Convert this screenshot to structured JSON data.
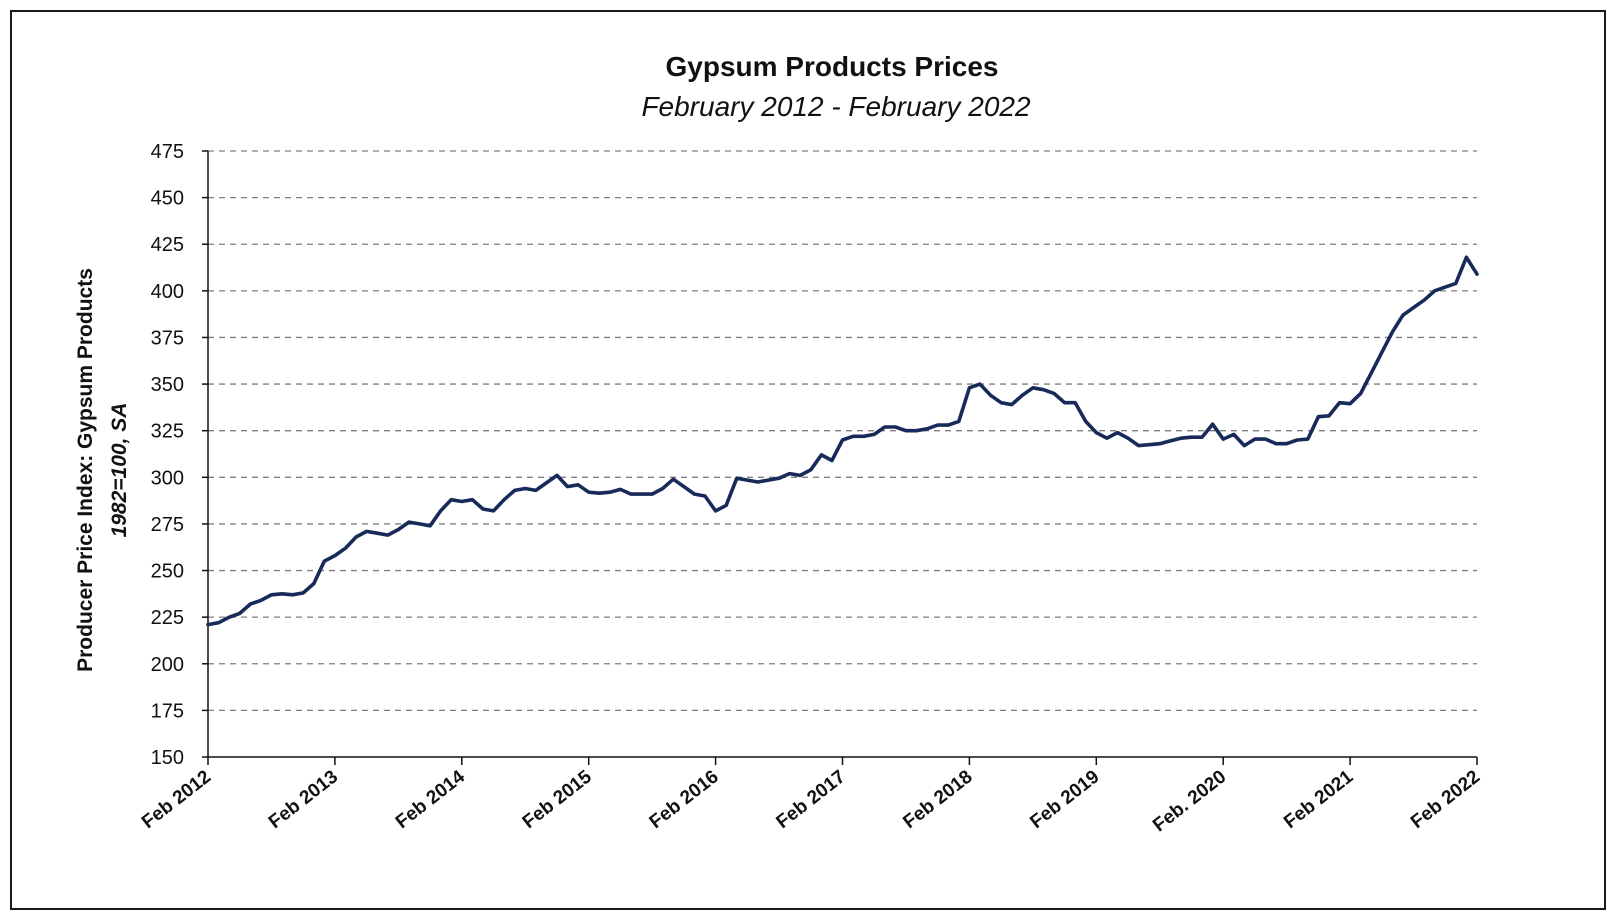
{
  "chart_data": {
    "type": "line",
    "title": "Gypsum Products Prices",
    "subtitle": "February 2012 - February 2022",
    "ylabel": "Producer Price Index: Gypsum Products",
    "ylabel_note": "1982=100, SA",
    "xlabel": "",
    "ylim": [
      150,
      475
    ],
    "yticks": [
      150,
      175,
      200,
      225,
      250,
      275,
      300,
      325,
      350,
      375,
      400,
      425,
      450,
      475
    ],
    "xlim": [
      "2012-02",
      "2022-02"
    ],
    "xticks": [
      {
        "x": "2012-02",
        "label": "Feb 2012"
      },
      {
        "x": "2013-02",
        "label": "Feb 2013"
      },
      {
        "x": "2014-02",
        "label": "Feb 2014"
      },
      {
        "x": "2015-02",
        "label": "Feb 2015"
      },
      {
        "x": "2016-02",
        "label": "Feb 2016"
      },
      {
        "x": "2017-02",
        "label": "Feb 2017"
      },
      {
        "x": "2018-02",
        "label": "Feb 2018"
      },
      {
        "x": "2019-02",
        "label": "Feb 2019"
      },
      {
        "x": "2020-02",
        "label": "Feb. 2020"
      },
      {
        "x": "2021-02",
        "label": "Feb 2021"
      },
      {
        "x": "2022-02",
        "label": "Feb 2022"
      }
    ],
    "grid": "horizontal-dashed",
    "legend": "none",
    "line_color": "#172a5a",
    "grid_color": "#7f7f7f",
    "series": [
      {
        "x": [
          "2012-02",
          "2012-03",
          "2012-04",
          "2012-05",
          "2012-06",
          "2012-07",
          "2012-08",
          "2012-09",
          "2012-10",
          "2012-11",
          "2012-12",
          "2013-01",
          "2013-02",
          "2013-03",
          "2013-04",
          "2013-05",
          "2013-06",
          "2013-07",
          "2013-08",
          "2013-09",
          "2013-10",
          "2013-11",
          "2013-12",
          "2014-01",
          "2014-02",
          "2014-03",
          "2014-04",
          "2014-05",
          "2014-06",
          "2014-07",
          "2014-08",
          "2014-09",
          "2014-10",
          "2014-11",
          "2014-12",
          "2015-01",
          "2015-02",
          "2015-03",
          "2015-04",
          "2015-05",
          "2015-06",
          "2015-07",
          "2015-08",
          "2015-09",
          "2015-10",
          "2015-11",
          "2015-12",
          "2016-01",
          "2016-02",
          "2016-03",
          "2016-04",
          "2016-05",
          "2016-06",
          "2016-07",
          "2016-08",
          "2016-09",
          "2016-10",
          "2016-11",
          "2016-12",
          "2017-01",
          "2017-02",
          "2017-03",
          "2017-04",
          "2017-05",
          "2017-06",
          "2017-07",
          "2017-08",
          "2017-09",
          "2017-10",
          "2017-11",
          "2017-12",
          "2018-01",
          "2018-02",
          "2018-03",
          "2018-04",
          "2018-05",
          "2018-06",
          "2018-07",
          "2018-08",
          "2018-09",
          "2018-10",
          "2018-11",
          "2018-12",
          "2019-01",
          "2019-02",
          "2019-03",
          "2019-04",
          "2019-05",
          "2019-06",
          "2019-07",
          "2019-08",
          "2019-09",
          "2019-10",
          "2019-11",
          "2019-12",
          "2020-01",
          "2020-02",
          "2020-03",
          "2020-04",
          "2020-05",
          "2020-06",
          "2020-07",
          "2020-08",
          "2020-09",
          "2020-10",
          "2020-11",
          "2020-12",
          "2021-01",
          "2021-02",
          "2021-03",
          "2021-04",
          "2021-05",
          "2021-06",
          "2021-07",
          "2021-08",
          "2021-09",
          "2021-10",
          "2021-11",
          "2021-12",
          "2022-01",
          "2022-02"
        ],
        "values": [
          221,
          222,
          225,
          227,
          232,
          234,
          237,
          237.5,
          237,
          238,
          243,
          255,
          258,
          262,
          268,
          271,
          270,
          269,
          272,
          276,
          275,
          274,
          282,
          288,
          287,
          288,
          283,
          282,
          288,
          293,
          294,
          293,
          297,
          301,
          295,
          296,
          292,
          291.5,
          292,
          293.5,
          291,
          291,
          291,
          294,
          299,
          295,
          291,
          290,
          282,
          285,
          299.5,
          298.5,
          297.5,
          298.5,
          299.5,
          302,
          301,
          304,
          312,
          309,
          320,
          322,
          322,
          323,
          327,
          327,
          325,
          325,
          326,
          328,
          328,
          330,
          348,
          350,
          344,
          340,
          339,
          344,
          348,
          347,
          345,
          340,
          340,
          330,
          324,
          321,
          324,
          321,
          317,
          317.5,
          318,
          319.5,
          321,
          321.5,
          321.5,
          328.5,
          320.5,
          323,
          317,
          320.5,
          320.5,
          318,
          318,
          320,
          320.5,
          332.5,
          333,
          340,
          339.5,
          345,
          356,
          367,
          378,
          387,
          391,
          395,
          400,
          402,
          404,
          418,
          409
        ]
      }
    ]
  }
}
